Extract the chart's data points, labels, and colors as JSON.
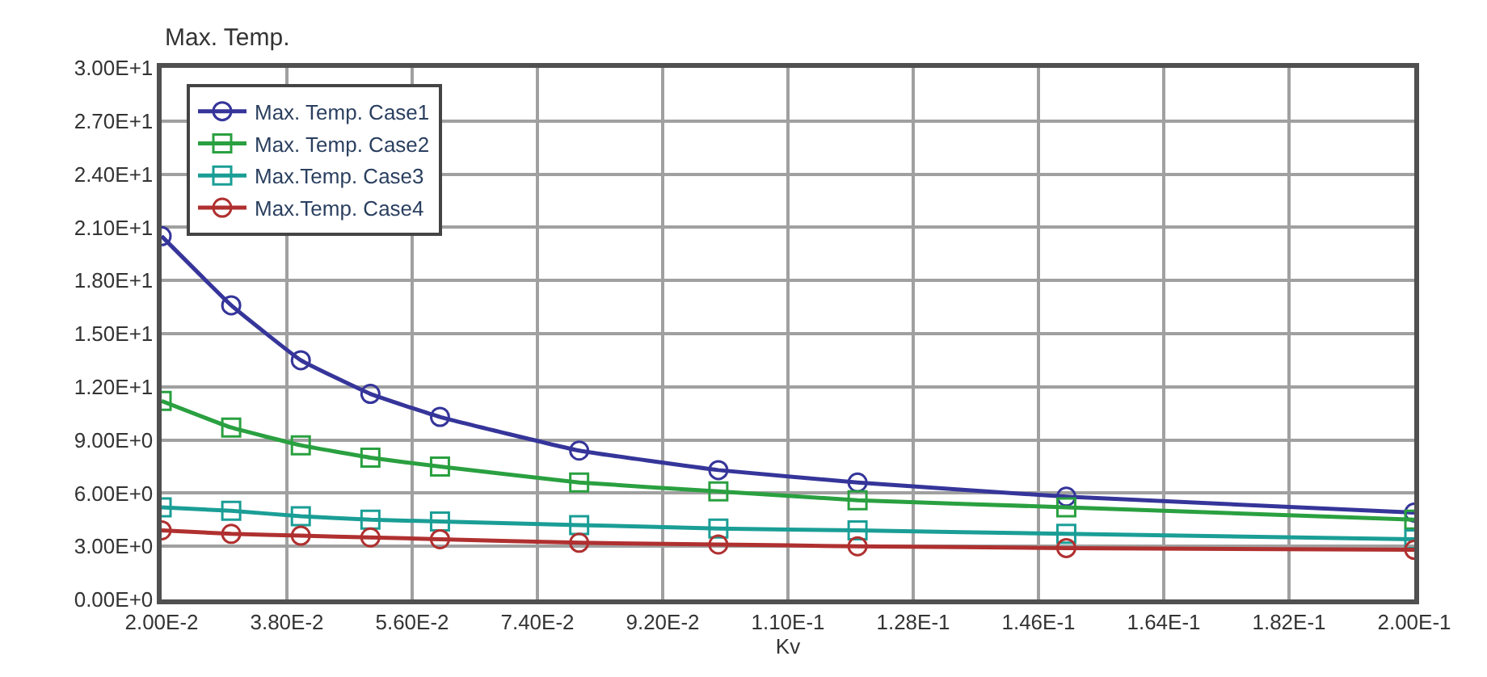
{
  "chart_data": {
    "type": "line",
    "ylabel": "Max. Temp.",
    "xlabel": "Kv",
    "x": [
      0.02,
      0.03,
      0.04,
      0.05,
      0.06,
      0.08,
      0.1,
      0.12,
      0.15,
      0.2
    ],
    "series": [
      {
        "name": "Max. Temp. Case1",
        "color": "#35359a",
        "marker": "circle",
        "values": [
          20.5,
          16.6,
          13.5,
          11.6,
          10.3,
          8.4,
          7.3,
          6.6,
          5.8,
          4.9
        ]
      },
      {
        "name": "Max. Temp. Case2",
        "color": "#2aa040",
        "marker": "square",
        "values": [
          11.2,
          9.7,
          8.7,
          8.0,
          7.5,
          6.6,
          6.1,
          5.6,
          5.2,
          4.5
        ]
      },
      {
        "name": "Max.Temp. Case3",
        "color": "#1a9e96",
        "marker": "square",
        "values": [
          5.2,
          5.0,
          4.7,
          4.5,
          4.4,
          4.2,
          4.0,
          3.9,
          3.7,
          3.4
        ]
      },
      {
        "name": "Max.Temp. Case4",
        "color": "#b03030",
        "marker": "circle",
        "values": [
          3.9,
          3.7,
          3.6,
          3.5,
          3.4,
          3.2,
          3.1,
          3.0,
          2.9,
          2.8
        ]
      }
    ],
    "xlim": [
      0.02,
      0.2
    ],
    "xticks": [
      {
        "value": 0.02,
        "label": "2.00E-2"
      },
      {
        "value": 0.038,
        "label": "3.80E-2"
      },
      {
        "value": 0.056,
        "label": "5.60E-2"
      },
      {
        "value": 0.074,
        "label": "7.40E-2"
      },
      {
        "value": 0.092,
        "label": "9.20E-2"
      },
      {
        "value": 0.11,
        "label": "1.10E-1"
      },
      {
        "value": 0.128,
        "label": "1.28E-1"
      },
      {
        "value": 0.146,
        "label": "1.46E-1"
      },
      {
        "value": 0.164,
        "label": "1.64E-1"
      },
      {
        "value": 0.182,
        "label": "1.82E-1"
      },
      {
        "value": 0.2,
        "label": "2.00E-1"
      }
    ],
    "ylim": [
      0,
      30
    ],
    "yticks": [
      {
        "value": 0,
        "label": "0.00E+0"
      },
      {
        "value": 3,
        "label": "3.00E+0"
      },
      {
        "value": 6,
        "label": "6.00E+0"
      },
      {
        "value": 9,
        "label": "9.00E+0"
      },
      {
        "value": 12,
        "label": "1.20E+1"
      },
      {
        "value": 15,
        "label": "1.50E+1"
      },
      {
        "value": 18,
        "label": "1.80E+1"
      },
      {
        "value": 21,
        "label": "2.10E+1"
      },
      {
        "value": 24,
        "label": "2.40E+1"
      },
      {
        "value": 27,
        "label": "2.70E+1"
      },
      {
        "value": 30,
        "label": "3.00E+1"
      }
    ],
    "grid": true,
    "legend": "top left",
    "line_style": "solid"
  }
}
